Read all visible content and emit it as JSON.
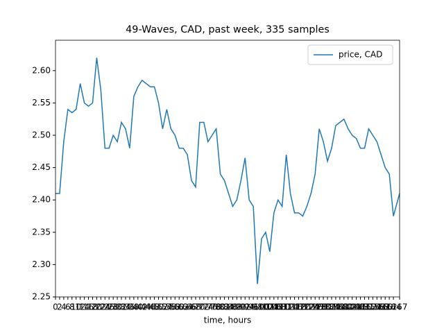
{
  "chart_data": {
    "type": "line",
    "title": "49-Waves, CAD, past week, 335 samples",
    "xlabel": "time, hours",
    "x": [
      0,
      2,
      4,
      6,
      8,
      10,
      12,
      14,
      16,
      18,
      20,
      22,
      24,
      26,
      28,
      30,
      32,
      34,
      36,
      38,
      40,
      42,
      44,
      46,
      48,
      50,
      52,
      54,
      56,
      58,
      60,
      62,
      64,
      66,
      68,
      70,
      72,
      74,
      76,
      78,
      80,
      82,
      84,
      86,
      88,
      90,
      92,
      94,
      96,
      98,
      100,
      102,
      104,
      106,
      108,
      110,
      112,
      114,
      116,
      118,
      120,
      122,
      124,
      126,
      128,
      130,
      132,
      134,
      136,
      138,
      140,
      142,
      144,
      146,
      148,
      150,
      152,
      154,
      156,
      158,
      160,
      162,
      164,
      167
    ],
    "series": [
      {
        "name": "price, CAD",
        "color": "#1f77b4",
        "values": [
          2.41,
          2.41,
          2.49,
          2.54,
          2.535,
          2.54,
          2.58,
          2.55,
          2.545,
          2.55,
          2.62,
          2.57,
          2.48,
          2.48,
          2.5,
          2.49,
          2.52,
          2.51,
          2.48,
          2.56,
          2.575,
          2.585,
          2.58,
          2.575,
          2.575,
          2.55,
          2.51,
          2.54,
          2.51,
          2.5,
          2.48,
          2.48,
          2.47,
          2.43,
          2.42,
          2.52,
          2.52,
          2.49,
          2.5,
          2.51,
          2.44,
          2.43,
          2.41,
          2.39,
          2.4,
          2.43,
          2.465,
          2.4,
          2.39,
          2.27,
          2.34,
          2.35,
          2.32,
          2.38,
          2.4,
          2.39,
          2.47,
          2.41,
          2.38,
          2.38,
          2.375,
          2.39,
          2.41,
          2.44,
          2.51,
          2.49,
          2.46,
          2.48,
          2.515,
          2.52,
          2.525,
          2.51,
          2.5,
          2.495,
          2.48,
          2.48,
          2.51,
          2.5,
          2.49,
          2.47,
          2.45,
          2.44,
          2.375,
          2.41
        ]
      }
    ],
    "xlim": [
      0,
      167
    ],
    "xticks": [
      0,
      2,
      4,
      6,
      8,
      10,
      12,
      14,
      16,
      18,
      20,
      22,
      24,
      26,
      28,
      30,
      32,
      34,
      36,
      38,
      40,
      42,
      44,
      46,
      48,
      50,
      52,
      54,
      56,
      58,
      60,
      62,
      64,
      66,
      68,
      70,
      72,
      74,
      76,
      78,
      80,
      82,
      84,
      86,
      88,
      90,
      92,
      94,
      96,
      98,
      100,
      102,
      104,
      106,
      108,
      110,
      112,
      114,
      116,
      118,
      120,
      122,
      124,
      126,
      128,
      130,
      132,
      134,
      136,
      138,
      140,
      142,
      144,
      146,
      148,
      150,
      152,
      154,
      156,
      158,
      160,
      162,
      164,
      167
    ],
    "ylim": [
      2.25,
      2.647
    ],
    "yticks": [
      2.25,
      {
        "value": 2.3,
        "label": "2.30"
      },
      2.35,
      {
        "value": 2.4,
        "label": "2.40"
      },
      2.45,
      {
        "value": 2.5,
        "label": "2.50"
      },
      2.55,
      {
        "value": 2.6,
        "label": "2.60"
      }
    ],
    "grid": false,
    "legend": "upper right"
  }
}
